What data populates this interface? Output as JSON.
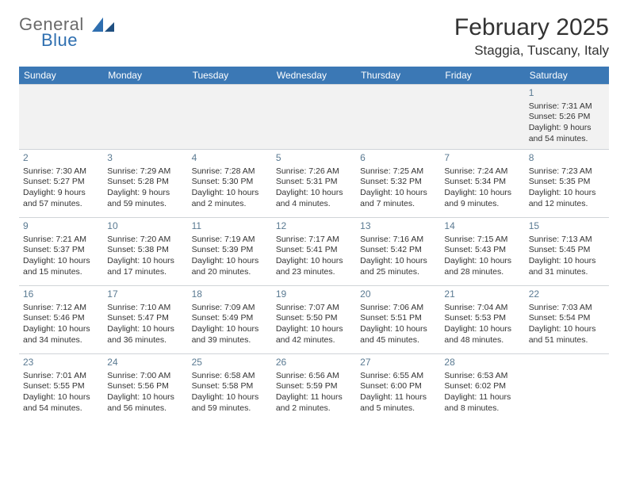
{
  "logo": {
    "text1": "General",
    "text2": "Blue"
  },
  "title": "February 2025",
  "location": "Staggia, Tuscany, Italy",
  "colors": {
    "header_bg": "#3b78b5",
    "header_text": "#ffffff",
    "daynum": "#5a7a92",
    "border": "#d0d4d8",
    "logo_gray": "#6a6a6a",
    "logo_blue": "#2f6fb0",
    "alt_row": "#f2f2f2"
  },
  "dow": [
    "Sunday",
    "Monday",
    "Tuesday",
    "Wednesday",
    "Thursday",
    "Friday",
    "Saturday"
  ],
  "weeks": [
    [
      {
        "n": "",
        "l": []
      },
      {
        "n": "",
        "l": []
      },
      {
        "n": "",
        "l": []
      },
      {
        "n": "",
        "l": []
      },
      {
        "n": "",
        "l": []
      },
      {
        "n": "",
        "l": []
      },
      {
        "n": "1",
        "l": [
          "Sunrise: 7:31 AM",
          "Sunset: 5:26 PM",
          "Daylight: 9 hours",
          "and 54 minutes."
        ]
      }
    ],
    [
      {
        "n": "2",
        "l": [
          "Sunrise: 7:30 AM",
          "Sunset: 5:27 PM",
          "Daylight: 9 hours",
          "and 57 minutes."
        ]
      },
      {
        "n": "3",
        "l": [
          "Sunrise: 7:29 AM",
          "Sunset: 5:28 PM",
          "Daylight: 9 hours",
          "and 59 minutes."
        ]
      },
      {
        "n": "4",
        "l": [
          "Sunrise: 7:28 AM",
          "Sunset: 5:30 PM",
          "Daylight: 10 hours",
          "and 2 minutes."
        ]
      },
      {
        "n": "5",
        "l": [
          "Sunrise: 7:26 AM",
          "Sunset: 5:31 PM",
          "Daylight: 10 hours",
          "and 4 minutes."
        ]
      },
      {
        "n": "6",
        "l": [
          "Sunrise: 7:25 AM",
          "Sunset: 5:32 PM",
          "Daylight: 10 hours",
          "and 7 minutes."
        ]
      },
      {
        "n": "7",
        "l": [
          "Sunrise: 7:24 AM",
          "Sunset: 5:34 PM",
          "Daylight: 10 hours",
          "and 9 minutes."
        ]
      },
      {
        "n": "8",
        "l": [
          "Sunrise: 7:23 AM",
          "Sunset: 5:35 PM",
          "Daylight: 10 hours",
          "and 12 minutes."
        ]
      }
    ],
    [
      {
        "n": "9",
        "l": [
          "Sunrise: 7:21 AM",
          "Sunset: 5:37 PM",
          "Daylight: 10 hours",
          "and 15 minutes."
        ]
      },
      {
        "n": "10",
        "l": [
          "Sunrise: 7:20 AM",
          "Sunset: 5:38 PM",
          "Daylight: 10 hours",
          "and 17 minutes."
        ]
      },
      {
        "n": "11",
        "l": [
          "Sunrise: 7:19 AM",
          "Sunset: 5:39 PM",
          "Daylight: 10 hours",
          "and 20 minutes."
        ]
      },
      {
        "n": "12",
        "l": [
          "Sunrise: 7:17 AM",
          "Sunset: 5:41 PM",
          "Daylight: 10 hours",
          "and 23 minutes."
        ]
      },
      {
        "n": "13",
        "l": [
          "Sunrise: 7:16 AM",
          "Sunset: 5:42 PM",
          "Daylight: 10 hours",
          "and 25 minutes."
        ]
      },
      {
        "n": "14",
        "l": [
          "Sunrise: 7:15 AM",
          "Sunset: 5:43 PM",
          "Daylight: 10 hours",
          "and 28 minutes."
        ]
      },
      {
        "n": "15",
        "l": [
          "Sunrise: 7:13 AM",
          "Sunset: 5:45 PM",
          "Daylight: 10 hours",
          "and 31 minutes."
        ]
      }
    ],
    [
      {
        "n": "16",
        "l": [
          "Sunrise: 7:12 AM",
          "Sunset: 5:46 PM",
          "Daylight: 10 hours",
          "and 34 minutes."
        ]
      },
      {
        "n": "17",
        "l": [
          "Sunrise: 7:10 AM",
          "Sunset: 5:47 PM",
          "Daylight: 10 hours",
          "and 36 minutes."
        ]
      },
      {
        "n": "18",
        "l": [
          "Sunrise: 7:09 AM",
          "Sunset: 5:49 PM",
          "Daylight: 10 hours",
          "and 39 minutes."
        ]
      },
      {
        "n": "19",
        "l": [
          "Sunrise: 7:07 AM",
          "Sunset: 5:50 PM",
          "Daylight: 10 hours",
          "and 42 minutes."
        ]
      },
      {
        "n": "20",
        "l": [
          "Sunrise: 7:06 AM",
          "Sunset: 5:51 PM",
          "Daylight: 10 hours",
          "and 45 minutes."
        ]
      },
      {
        "n": "21",
        "l": [
          "Sunrise: 7:04 AM",
          "Sunset: 5:53 PM",
          "Daylight: 10 hours",
          "and 48 minutes."
        ]
      },
      {
        "n": "22",
        "l": [
          "Sunrise: 7:03 AM",
          "Sunset: 5:54 PM",
          "Daylight: 10 hours",
          "and 51 minutes."
        ]
      }
    ],
    [
      {
        "n": "23",
        "l": [
          "Sunrise: 7:01 AM",
          "Sunset: 5:55 PM",
          "Daylight: 10 hours",
          "and 54 minutes."
        ]
      },
      {
        "n": "24",
        "l": [
          "Sunrise: 7:00 AM",
          "Sunset: 5:56 PM",
          "Daylight: 10 hours",
          "and 56 minutes."
        ]
      },
      {
        "n": "25",
        "l": [
          "Sunrise: 6:58 AM",
          "Sunset: 5:58 PM",
          "Daylight: 10 hours",
          "and 59 minutes."
        ]
      },
      {
        "n": "26",
        "l": [
          "Sunrise: 6:56 AM",
          "Sunset: 5:59 PM",
          "Daylight: 11 hours",
          "and 2 minutes."
        ]
      },
      {
        "n": "27",
        "l": [
          "Sunrise: 6:55 AM",
          "Sunset: 6:00 PM",
          "Daylight: 11 hours",
          "and 5 minutes."
        ]
      },
      {
        "n": "28",
        "l": [
          "Sunrise: 6:53 AM",
          "Sunset: 6:02 PM",
          "Daylight: 11 hours",
          "and 8 minutes."
        ]
      },
      {
        "n": "",
        "l": []
      }
    ]
  ]
}
